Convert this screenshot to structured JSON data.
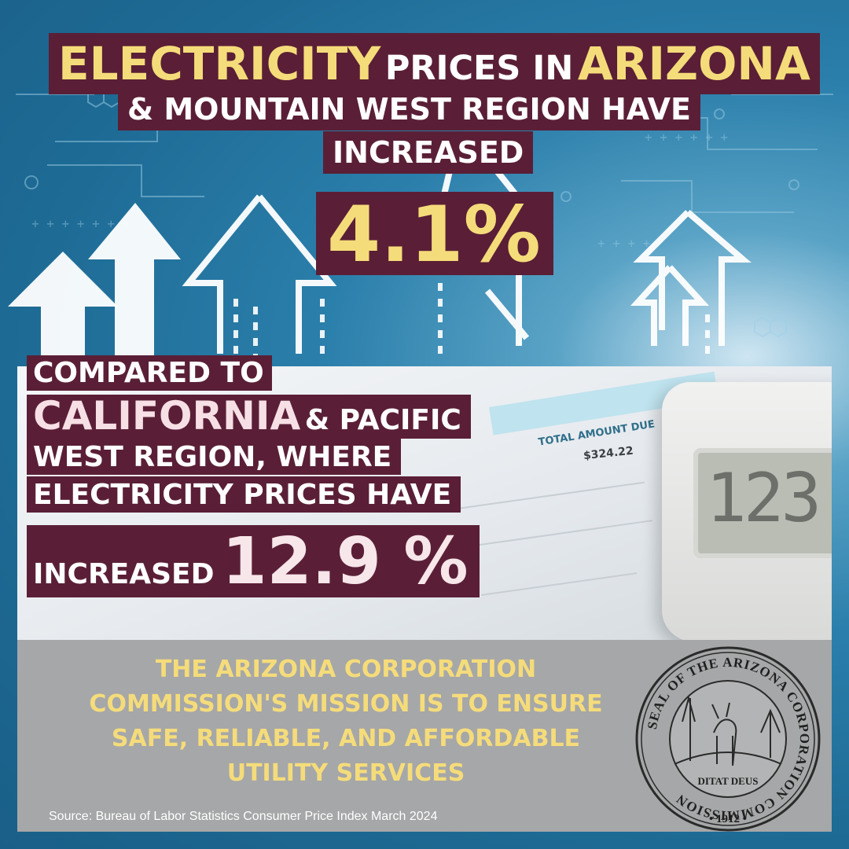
{
  "headline": {
    "word1": "ELECTRICITY",
    "word2": "PRICES IN",
    "word3": "ARIZONA",
    "line2": "& MOUNTAIN WEST REGION HAVE",
    "line3": "INCREASED",
    "percent": "4.1%"
  },
  "comparison": {
    "line1": "COMPARED TO",
    "highlight": "CALIFORNIA",
    "line2_rest": "& PACIFIC",
    "line3": "WEST REGION, WHERE",
    "line4": "ELECTRICITY PRICES  HAVE",
    "increased": "INCREASED",
    "percent": "12.9 %"
  },
  "bill": {
    "amount_label": "TOTAL AMOUNT DUE",
    "amount": "$324.22",
    "meter_reading": "123"
  },
  "mission": {
    "text_lines": [
      "THE ARIZONA CORPORATION",
      "COMMISSION'S MISSION IS TO ENSURE",
      "SAFE, RELIABLE, AND AFFORDABLE",
      "UTILITY SERVICES"
    ]
  },
  "seal": {
    "ring_text": "SEAL OF THE ARIZONA CORPORATION COMMISSION",
    "motto": "DITAT DEUS",
    "year": "• 1912 •"
  },
  "source": "Source:  Bureau of Labor Statistics Consumer Price Index  March 2024",
  "colors": {
    "maroon": "#5a1f36",
    "gold": "#f5dc7a",
    "panel_gray": "#a6a7a8",
    "sky": "#2b7fab"
  }
}
